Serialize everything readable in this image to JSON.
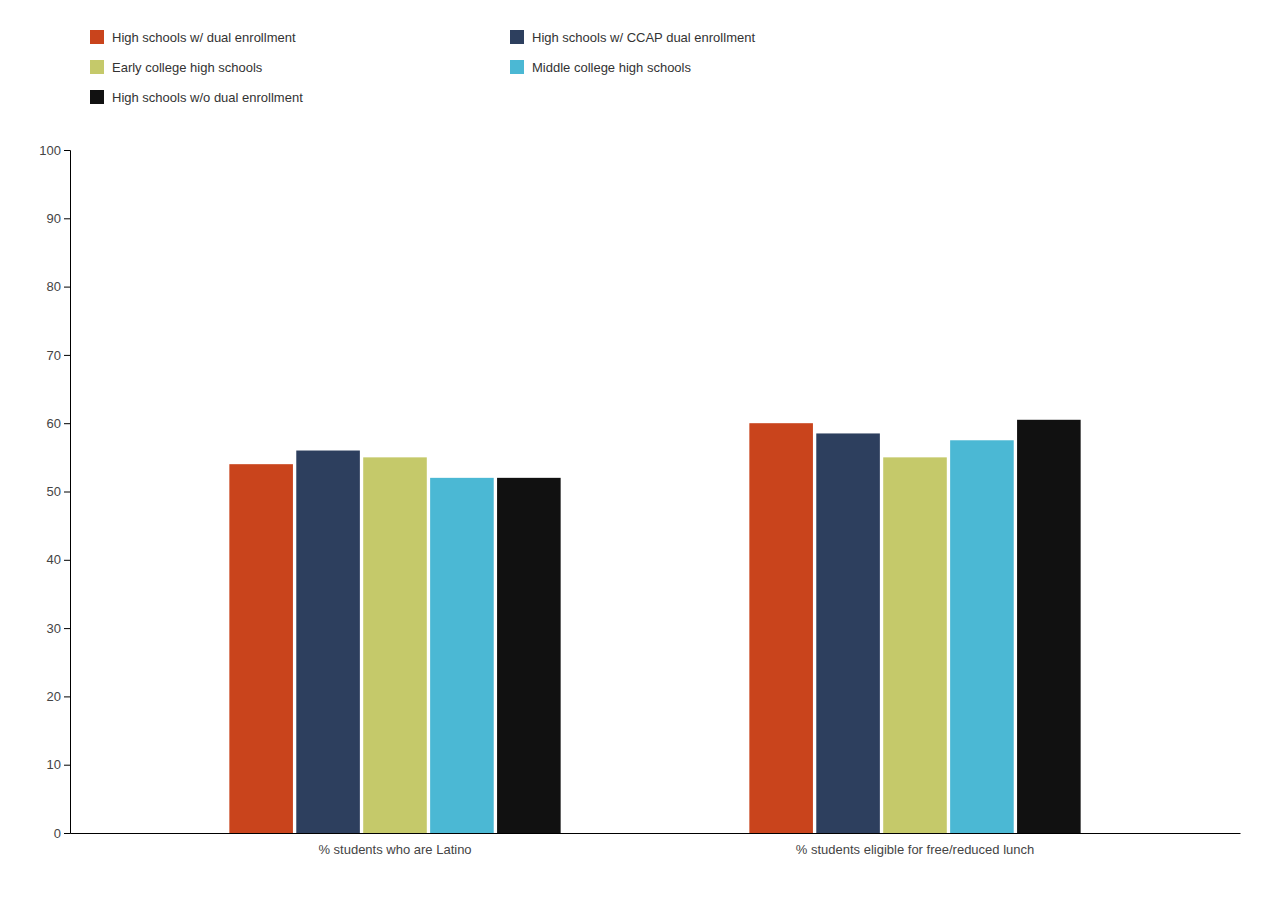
{
  "chart_data": {
    "type": "bar",
    "categories": [
      "% students who are Latino",
      "% students eligible for free/reduced lunch"
    ],
    "series": [
      {
        "name": "High schools w/ dual enrollment",
        "color": "#C9441C",
        "values": [
          54,
          60
        ]
      },
      {
        "name": "High schools w/ CCAP dual enrollment",
        "color": "#2D3F5E",
        "values": [
          56,
          58.5
        ]
      },
      {
        "name": "Early college high schools",
        "color": "#C5C96A",
        "values": [
          55,
          55
        ]
      },
      {
        "name": "Middle college high schools",
        "color": "#4BB8D4",
        "values": [
          52,
          57.5
        ]
      },
      {
        "name": "High schools w/o dual enrollment",
        "color": "#111111",
        "values": [
          52,
          60.5
        ]
      }
    ],
    "ylim": [
      0,
      100
    ],
    "yticks": [
      0,
      10,
      20,
      30,
      40,
      50,
      60,
      70,
      80,
      90,
      100
    ],
    "grid": false,
    "legend": "upper left"
  }
}
